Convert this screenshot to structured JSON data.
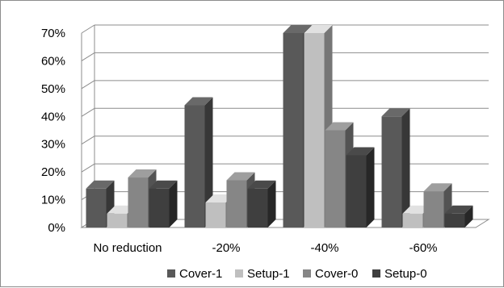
{
  "chart_data": {
    "type": "bar",
    "style": "3d-clustered-column",
    "categories": [
      "No reduction",
      "-20%",
      "-40%",
      "-60%"
    ],
    "series": [
      {
        "name": "Cover-1",
        "values": [
          14,
          44,
          70,
          40
        ],
        "color": "#595959"
      },
      {
        "name": "Setup-1",
        "values": [
          5,
          9,
          70,
          5
        ],
        "color": "#bfbfbf"
      },
      {
        "name": "Cover-0",
        "values": [
          18,
          17,
          35,
          13
        ],
        "color": "#868686"
      },
      {
        "name": "Setup-0",
        "values": [
          14,
          14,
          26,
          5
        ],
        "color": "#3f3f3f"
      }
    ],
    "ylim": [
      0,
      70
    ],
    "y_ticks": [
      "0%",
      "10%",
      "20%",
      "30%",
      "40%",
      "50%",
      "60%",
      "70%"
    ],
    "y_unit": "%",
    "grid": true,
    "legend_position": "bottom"
  }
}
